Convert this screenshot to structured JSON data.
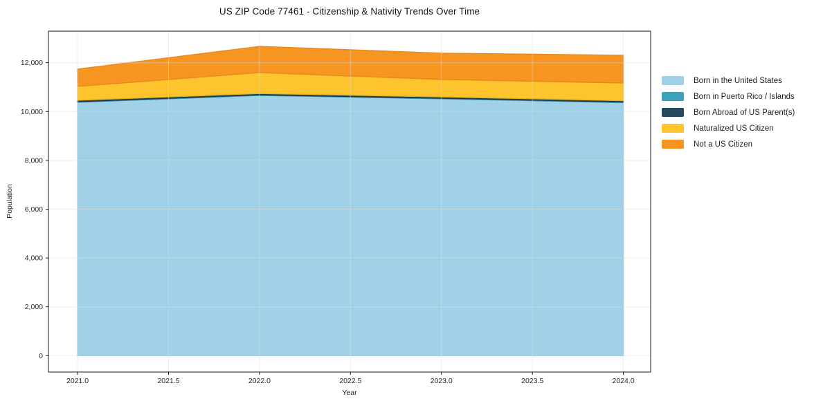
{
  "title": "US ZIP Code 77461 - Citizenship & Nativity Trends Over Time",
  "chart_data": {
    "type": "area",
    "stacked": true,
    "title": "US ZIP Code 77461 - Citizenship & Nativity Trends Over Time",
    "xlabel": "Year",
    "ylabel": "Population",
    "legend_position": "right-outside",
    "grid": true,
    "background": "#ffffff",
    "x": [
      2021,
      2022,
      2023,
      2024
    ],
    "series": [
      {
        "name": "Born in the United States",
        "color": "#a0d1e7",
        "edge": "#86bdd8",
        "values": [
          10380,
          10660,
          10520,
          10365
        ]
      },
      {
        "name": "Born in Puerto Rico / Islands",
        "color": "#3ba2bd",
        "edge": "#2e8ba3",
        "values": [
          25,
          25,
          25,
          25
        ]
      },
      {
        "name": "Born Abroad of US Parent(s)",
        "color": "#26495c",
        "edge": "#1b3748",
        "values": [
          55,
          55,
          55,
          55
        ]
      },
      {
        "name": "Naturalized US Citizen",
        "color": "#fdc42d",
        "edge": "#eab31c",
        "values": [
          570,
          855,
          715,
          725
        ]
      },
      {
        "name": "Not a US Citizen",
        "color": "#f6951f",
        "edge": "#e8861c",
        "values": [
          710,
          1075,
          1075,
          1135
        ]
      }
    ],
    "stacked_totals": [
      11740,
      12670,
      12390,
      12305
    ],
    "xlim": [
      2020.84,
      2024.15
    ],
    "ylim": [
      -671,
      13294
    ],
    "xticks": [
      2021.0,
      2021.5,
      2022.0,
      2022.5,
      2023.0,
      2023.5,
      2024.0
    ],
    "xtick_labels": [
      "2021.0",
      "2021.5",
      "2022.0",
      "2022.5",
      "2023.0",
      "2023.5",
      "2024.0"
    ],
    "yticks": [
      0,
      2000,
      4000,
      6000,
      8000,
      10000,
      12000
    ],
    "ytick_labels": [
      "0",
      "2,000",
      "4,000",
      "6,000",
      "8,000",
      "10,000",
      "12,000"
    ],
    "gridline_color": "#dcdcdc",
    "spine_color": "#1a1a1a"
  }
}
